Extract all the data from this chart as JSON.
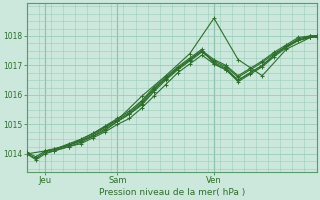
{
  "bg_color": "#cce8dc",
  "grid_color": "#99ccbb",
  "line_color": "#2d6e2d",
  "marker_color": "#2d6e2d",
  "ylabel_ticks": [
    1014,
    1015,
    1016,
    1017,
    1018
  ],
  "xlim": [
    0,
    96
  ],
  "ylim": [
    1013.4,
    1019.1
  ],
  "xlabel": "Pression niveau de la mer( hPa )",
  "day_labels": [
    "Jeu",
    "Sam",
    "Ven"
  ],
  "day_positions": [
    6,
    30,
    62
  ],
  "series": [
    {
      "x": [
        0,
        3,
        6,
        9,
        14,
        18,
        22,
        26,
        30,
        34,
        38,
        42,
        46,
        50,
        54,
        58,
        62,
        66,
        70,
        74,
        78,
        82,
        86,
        90,
        94,
        96
      ],
      "y": [
        1014.0,
        1013.85,
        1014.05,
        1014.1,
        1014.25,
        1014.35,
        1014.55,
        1014.75,
        1015.0,
        1015.2,
        1015.55,
        1015.95,
        1016.35,
        1016.75,
        1017.05,
        1017.35,
        1017.05,
        1016.85,
        1016.5,
        1016.75,
        1017.0,
        1017.35,
        1017.65,
        1017.85,
        1017.95,
        1018.0
      ]
    },
    {
      "x": [
        0,
        3,
        6,
        9,
        14,
        18,
        22,
        26,
        30,
        34,
        38,
        42,
        46,
        50,
        54,
        58,
        62,
        66,
        70,
        74,
        78,
        82,
        86,
        90,
        94,
        96
      ],
      "y": [
        1014.05,
        1013.9,
        1014.1,
        1014.15,
        1014.3,
        1014.45,
        1014.6,
        1014.85,
        1015.1,
        1015.35,
        1015.65,
        1016.1,
        1016.5,
        1016.85,
        1017.15,
        1017.45,
        1017.15,
        1016.95,
        1016.6,
        1016.85,
        1017.1,
        1017.4,
        1017.65,
        1017.9,
        1018.0,
        1018.0
      ]
    },
    {
      "x": [
        0,
        3,
        6,
        9,
        14,
        18,
        22,
        26,
        30,
        34,
        38,
        42,
        46,
        50,
        54,
        58,
        62,
        66,
        70,
        74,
        78,
        82,
        86,
        90,
        94,
        96
      ],
      "y": [
        1014.0,
        1013.8,
        1014.0,
        1014.1,
        1014.25,
        1014.4,
        1014.6,
        1014.8,
        1015.1,
        1015.35,
        1015.7,
        1016.15,
        1016.55,
        1016.9,
        1017.2,
        1017.5,
        1017.2,
        1017.0,
        1016.65,
        1016.9,
        1017.15,
        1017.45,
        1017.7,
        1017.95,
        1018.0,
        1018.0
      ]
    },
    {
      "x": [
        6,
        9,
        14,
        18,
        22,
        26,
        30,
        34,
        38,
        42,
        46,
        50,
        54,
        58,
        62,
        66,
        70,
        74,
        78,
        82,
        86,
        90,
        94,
        96
      ],
      "y": [
        1014.1,
        1014.15,
        1014.3,
        1014.45,
        1014.65,
        1014.9,
        1015.15,
        1015.4,
        1015.75,
        1016.2,
        1016.55,
        1016.9,
        1017.2,
        1017.5,
        1017.1,
        1016.9,
        1016.5,
        1016.75,
        1017.0,
        1017.35,
        1017.65,
        1017.85,
        1018.0,
        1018.0
      ]
    },
    {
      "x": [
        6,
        9,
        14,
        18,
        22,
        26,
        30,
        34,
        38,
        42,
        46,
        50,
        54,
        58,
        62,
        66,
        70,
        74,
        78,
        82,
        86,
        90,
        94,
        96
      ],
      "y": [
        1014.1,
        1014.15,
        1014.35,
        1014.5,
        1014.7,
        1014.95,
        1015.2,
        1015.45,
        1015.8,
        1016.25,
        1016.6,
        1016.95,
        1017.25,
        1017.55,
        1017.05,
        1016.85,
        1016.45,
        1016.7,
        1016.95,
        1017.3,
        1017.6,
        1017.85,
        1017.95,
        1017.95
      ]
    },
    {
      "x": [
        0,
        6,
        14,
        22,
        30,
        38,
        46,
        54,
        62,
        70,
        78,
        86,
        94,
        96
      ],
      "y": [
        1014.0,
        1014.1,
        1014.3,
        1014.7,
        1015.15,
        1015.95,
        1016.65,
        1017.4,
        1018.6,
        1017.2,
        1016.65,
        1017.55,
        1017.95,
        1018.0
      ]
    }
  ]
}
